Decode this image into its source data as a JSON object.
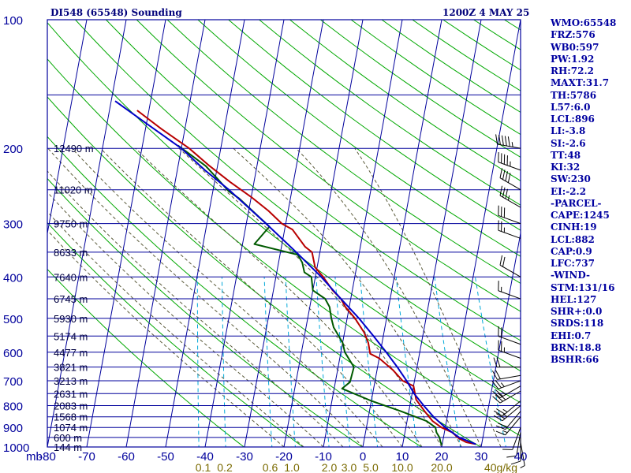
{
  "header": {
    "station": "DI548 (65548) Sounding",
    "time": "1200Z  4 MAY 25"
  },
  "indices": [
    "WMO:65548",
    "FRZ:576",
    "WB0:597",
    "PW:1.92",
    "RH:72.2",
    "MAXT:31.7",
    "TH:5786",
    "L57:6.0",
    "LCL:896",
    "LI:-3.8",
    "SI:-2.6",
    "TT:48",
    "KI:32",
    "SW:230",
    "EI:-2.2",
    "-PARCEL-",
    "CAPE:1245",
    "CINH:19",
    "LCL:882",
    "CAP:0.9",
    "LFC:737",
    "-WIND-",
    "STM:131/16",
    "HEL:127",
    "SHR+:0.0",
    "SRDS:118",
    "EHI:0.7",
    "BRN:18.8",
    "BSHR:66"
  ],
  "colors": {
    "background": "#ffffff",
    "grid": "#00009c",
    "dry_adiabat": "#00a800",
    "moist_adiabat": "#5a5a3a",
    "mixing_ratio": "#00a8d8",
    "temperature": "#b80000",
    "dewpoint": "#005a00",
    "parcel": "#0000c8",
    "wind": "#000000"
  },
  "chart_data": {
    "type": "line",
    "title": "DI548 (65548) Sounding",
    "xlabel": "",
    "ylabel": "mb",
    "x_unit": "°C",
    "xlim": [
      -80,
      40
    ],
    "ylim": [
      1000,
      100
    ],
    "y_scale": "log",
    "x_ticks": [
      -80,
      -70,
      -60,
      -50,
      -40,
      -30,
      -20,
      -10,
      0,
      10,
      20,
      30,
      40
    ],
    "y_ticks": [
      100,
      200,
      300,
      400,
      500,
      600,
      700,
      800,
      900,
      1000
    ],
    "height_labels": [
      {
        "p": 200,
        "label": "12490 m"
      },
      {
        "p": 250,
        "label": "11020 m"
      },
      {
        "p": 300,
        "label": "9750 m"
      },
      {
        "p": 350,
        "label": "8633 m"
      },
      {
        "p": 400,
        "label": "7640 m"
      },
      {
        "p": 450,
        "label": "6745 m"
      },
      {
        "p": 500,
        "label": "5930 m"
      },
      {
        "p": 550,
        "label": "5174 m"
      },
      {
        "p": 600,
        "label": "4477 m"
      },
      {
        "p": 650,
        "label": "3821 m"
      },
      {
        "p": 700,
        "label": "3213 m"
      },
      {
        "p": 750,
        "label": "2631 m"
      },
      {
        "p": 800,
        "label": "2083 m"
      },
      {
        "p": 850,
        "label": "1568 m"
      },
      {
        "p": 900,
        "label": "1074 m"
      },
      {
        "p": 950,
        "label": "600 m"
      },
      {
        "p": 1000,
        "label": "144 m"
      }
    ],
    "mixing_ratio_labels": [
      "0.1",
      "0.2",
      "0.6",
      "1.0",
      "2.0",
      "3.0",
      "5.0",
      "10.0",
      "20.0",
      "40g/kg"
    ],
    "mixing_ratio_label_x": [
      -40.5,
      -35,
      -23.5,
      -18,
      -8.5,
      -3.5,
      2,
      10,
      20,
      35
    ],
    "dry_adiabat_theta_k": [
      243,
      258,
      273,
      288,
      303,
      318,
      333,
      348,
      363,
      378,
      393,
      408,
      423,
      438,
      453,
      468,
      483,
      498,
      513,
      528,
      543,
      558,
      573
    ],
    "moist_adiabat_start_c": [
      -20,
      -15,
      -10,
      -5,
      0,
      5,
      10,
      15,
      20,
      25,
      30,
      35
    ],
    "mixing_ratio_g_kg": [
      0.1,
      0.2,
      0.6,
      1.0,
      2.0,
      3.0,
      5.0,
      10.0,
      20.0,
      40.0
    ],
    "series": [
      {
        "key": "temperature",
        "points": [
          [
            28.5,
            985
          ],
          [
            26,
            975
          ],
          [
            24,
            955
          ],
          [
            22,
            925
          ],
          [
            19,
            900
          ],
          [
            16.5,
            870
          ],
          [
            14,
            825
          ],
          [
            11.3,
            775
          ],
          [
            10,
            720
          ],
          [
            7,
            700
          ],
          [
            4,
            660
          ],
          [
            0,
            620
          ],
          [
            -2.5,
            605
          ],
          [
            -3.5,
            570
          ],
          [
            -5,
            540
          ],
          [
            -8,
            500
          ],
          [
            -11,
            470
          ],
          [
            -12.5,
            450
          ],
          [
            -15,
            430
          ],
          [
            -18,
            400
          ],
          [
            -20.5,
            380
          ],
          [
            -22,
            350
          ],
          [
            -24,
            340
          ],
          [
            -28,
            310
          ],
          [
            -31,
            300
          ],
          [
            -35,
            280
          ],
          [
            -40,
            260
          ],
          [
            -46,
            240
          ],
          [
            -52,
            220
          ],
          [
            -58,
            200
          ],
          [
            -66,
            180
          ],
          [
            -73,
            163
          ]
        ]
      },
      {
        "key": "dewpoint",
        "points": [
          [
            20,
            990
          ],
          [
            19.5,
            975
          ],
          [
            19,
            950
          ],
          [
            18,
            925
          ],
          [
            17.5,
            900
          ],
          [
            15,
            870
          ],
          [
            8,
            825
          ],
          [
            0,
            780
          ],
          [
            -8,
            730
          ],
          [
            -6.3,
            705
          ],
          [
            -6,
            650
          ],
          [
            -9,
            600
          ],
          [
            -10,
            570
          ],
          [
            -13,
            525
          ],
          [
            -14,
            500
          ],
          [
            -15,
            470
          ],
          [
            -16.5,
            450
          ],
          [
            -20,
            430
          ],
          [
            -21,
            400
          ],
          [
            -23,
            390
          ],
          [
            -24,
            370
          ],
          [
            -25.5,
            355
          ],
          [
            -37,
            335
          ],
          [
            -34,
            305
          ],
          [
            -37,
            290
          ],
          [
            -43,
            262
          ],
          [
            -46,
            252
          ],
          [
            -50,
            233
          ],
          [
            -53,
            220
          ],
          [
            -57,
            208
          ],
          [
            -61,
            197
          ]
        ]
      },
      {
        "key": "parcel",
        "points": [
          [
            28.5,
            985
          ],
          [
            24,
            950
          ],
          [
            20,
            900
          ],
          [
            16.5,
            850
          ],
          [
            13.5,
            800
          ],
          [
            10.5,
            750
          ],
          [
            8,
            700
          ],
          [
            5,
            650
          ],
          [
            1.5,
            600
          ],
          [
            -2.5,
            550
          ],
          [
            -7,
            500
          ],
          [
            -12.5,
            450
          ],
          [
            -18.5,
            400
          ],
          [
            -26,
            350
          ],
          [
            -35,
            300
          ],
          [
            -46,
            250
          ],
          [
            -53,
            225
          ],
          [
            -60,
            200
          ],
          [
            -70,
            175
          ],
          [
            -79,
            155
          ]
        ]
      }
    ],
    "wind_barbs": [
      {
        "p": 200,
        "dir": 280,
        "kt": 55
      },
      {
        "p": 225,
        "dir": 290,
        "kt": 45
      },
      {
        "p": 250,
        "dir": 300,
        "kt": 40
      },
      {
        "p": 275,
        "dir": 300,
        "kt": 35
      },
      {
        "p": 300,
        "dir": 290,
        "kt": 30
      },
      {
        "p": 325,
        "dir": 290,
        "kt": 25
      },
      {
        "p": 400,
        "dir": 300,
        "kt": 20
      },
      {
        "p": 450,
        "dir": 290,
        "kt": 15
      },
      {
        "p": 575,
        "dir": 290,
        "kt": 20
      },
      {
        "p": 620,
        "dir": 290,
        "kt": 25
      },
      {
        "p": 650,
        "dir": 270,
        "kt": 20
      },
      {
        "p": 680,
        "dir": 260,
        "kt": 20
      },
      {
        "p": 700,
        "dir": 250,
        "kt": 25
      },
      {
        "p": 720,
        "dir": 240,
        "kt": 25
      },
      {
        "p": 740,
        "dir": 240,
        "kt": 30
      },
      {
        "p": 780,
        "dir": 230,
        "kt": 25
      },
      {
        "p": 800,
        "dir": 230,
        "kt": 25
      },
      {
        "p": 825,
        "dir": 220,
        "kt": 20
      },
      {
        "p": 850,
        "dir": 220,
        "kt": 15
      },
      {
        "p": 900,
        "dir": 200,
        "kt": 10
      },
      {
        "p": 925,
        "dir": 190,
        "kt": 10
      },
      {
        "p": 950,
        "dir": 180,
        "kt": 10
      },
      {
        "p": 975,
        "dir": 170,
        "kt": 5
      }
    ]
  }
}
